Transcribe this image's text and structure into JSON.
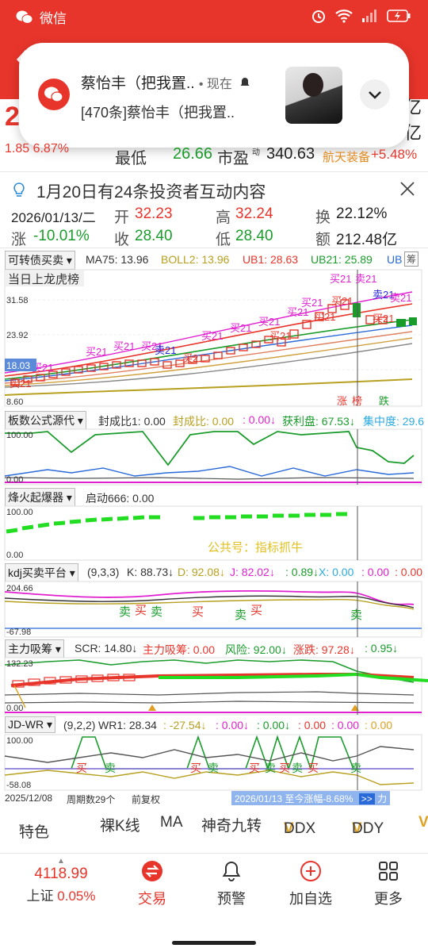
{
  "statusbar": {
    "app": "微信"
  },
  "notification": {
    "title": "蔡怡丰（把我置..",
    "time": "• 现在",
    "body": "[470条]蔡怡丰（把我置.."
  },
  "quote": {
    "price_partial": "2",
    "right1": "亿",
    "right2": "亿",
    "change_pct": "1.85 6.87%",
    "low_label": "最低",
    "low_value": "26.66",
    "pe_label": "市盈",
    "pe_sup": "动",
    "pe_value": "340.63",
    "sector": "航天装备",
    "sector_change": "+5.48%"
  },
  "interaction": {
    "text": "1月20日有24条投资者互动内容"
  },
  "info": {
    "date": "2026/01/13/二",
    "open_label": "开",
    "open_value": "32.23",
    "high_label": "高",
    "high_value": "32.24",
    "turnover_label": "换",
    "turnover_value": "22.12%",
    "change_label": "涨",
    "change_value": "-10.01%",
    "close_label": "收",
    "close_value": "28.40",
    "low_label": "低",
    "low_value": "28.40",
    "amount_label": "额",
    "amount_value": "212.48亿"
  },
  "main_chart": {
    "selector": "可转债买卖",
    "ma75": "MA75: 13.96",
    "boll2": "BOLL2: 13.96",
    "ub1": "UB1: 28.63",
    "ub21": "UB21: 25.89",
    "ub": "UB",
    "badge": "筹",
    "dragon_tiger": "当日上龙虎榜",
    "y_top": "31.58",
    "y_mid": "23.92",
    "y_low": "18.03",
    "y_bottom": "8.60",
    "marker_up": "涨",
    "marker_list": "榜",
    "marker_down": "跌",
    "buy": "买",
    "sell": "卖",
    "buy21": "买21",
    "sell21": "卖21"
  },
  "panel1": {
    "selector": "板数公式源代",
    "f1": "封成比1: 0.00",
    "f2": "封成比: 0.00",
    "f3": ": 0.00↓",
    "f4": "获利盘: 67.53↓",
    "f5": "集中度: 29.6",
    "y_top": "100.00",
    "y_bottom": "0.00"
  },
  "panel2": {
    "selector": "烽火起爆器",
    "f1": "启动666: 0.00",
    "y_top": "100.00",
    "y_bottom": "0.00",
    "watermark": "公共号：指标抓牛"
  },
  "panel3": {
    "selector": "kdj买卖平台",
    "params": "(9,3,3)",
    "k": "K: 88.73↓",
    "d": "D: 92.08↓",
    "j": "J: 82.02↓",
    "f1": ": 0.89↓",
    "x": "X: 0.00",
    "f2": ": 0.00",
    "f3": ": 0.00",
    "y_top": "204.66",
    "y_bottom": "-67.98",
    "labels": [
      "卖",
      "买",
      "卖",
      "买",
      "卖",
      "买",
      "卖"
    ]
  },
  "panel4": {
    "selector": "主力吸筹",
    "scr": "SCR: 14.80↓",
    "absorb": "主力吸筹: 0.00",
    "risk": "风险: 92.00↓",
    "updown": "涨跌: 97.28↓",
    "f1": ": 0.95↓",
    "y_top": "132.23",
    "y_bottom": "0.00"
  },
  "panel5": {
    "selector": "JD-WR",
    "params": "(9,2,2)",
    "wr1": "WR1: 28.34",
    "f1": ": -27.54↓",
    "f2": ": 0.00↓",
    "f3": ": 0.00↓",
    "f4": ": 0.00",
    "f5": ": 0.00",
    "f6": ": 0.00",
    "y_top": "100.00",
    "y_bottom": "-58.08",
    "labels": [
      "买",
      "卖",
      "买",
      "卖",
      "买",
      "卖",
      "买",
      "卖",
      "买",
      "卖"
    ]
  },
  "footer_info": {
    "start_date": "2025/12/08",
    "period": "周期数29个",
    "adjust": "前复权",
    "range_text": "2026/01/13 至今涨幅-8.68%",
    "range_btn": ">>",
    "range_tail": "力"
  },
  "tabs": {
    "items": [
      "特色",
      "裸K线",
      "MA",
      "神奇九转",
      "DDX",
      "DDY"
    ]
  },
  "bottom_nav": {
    "index_value": "4118.99",
    "index_name": "上证",
    "index_change": "0.05%",
    "trade": "交易",
    "alert": "预警",
    "add": "加自选",
    "more": "更多"
  },
  "colors": {
    "red": "#e8352b",
    "green": "#1a9c2b",
    "magenta": "#e020d0",
    "blue": "#2a6ad8",
    "olive": "#b8a020"
  }
}
